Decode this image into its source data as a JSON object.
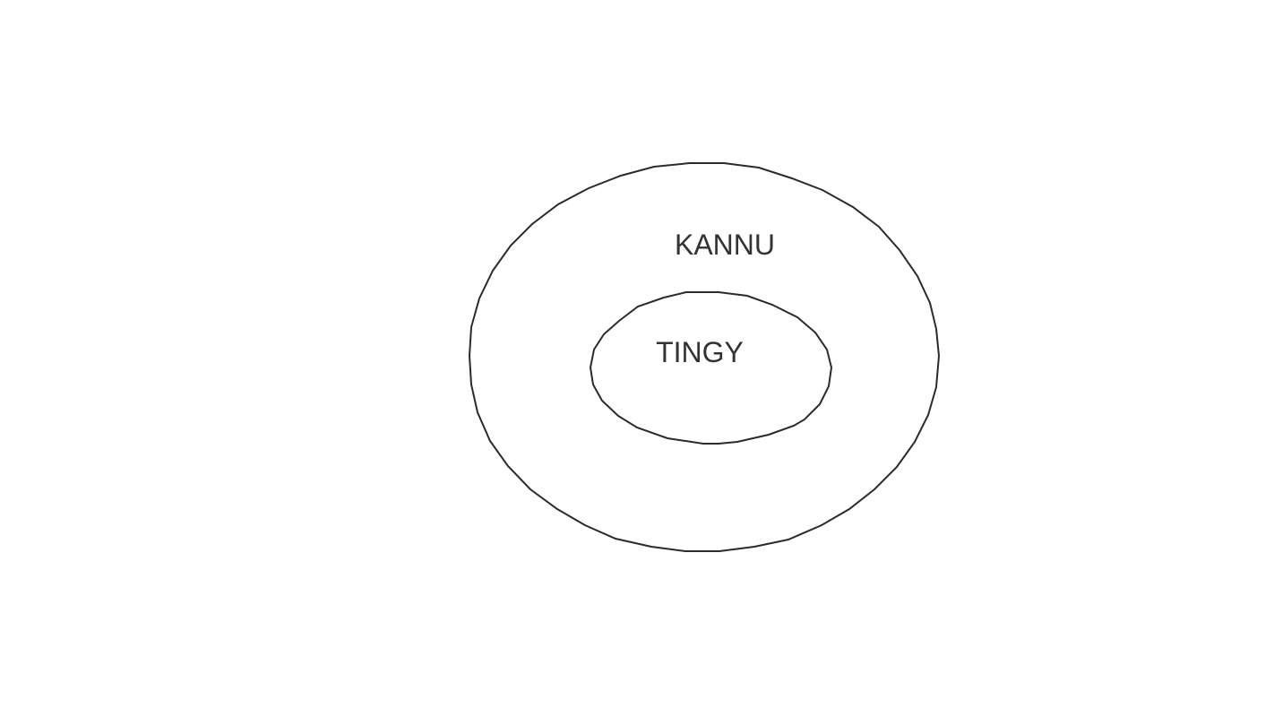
{
  "diagram": {
    "outer_label": "KANNU",
    "inner_label": "TINGY"
  }
}
